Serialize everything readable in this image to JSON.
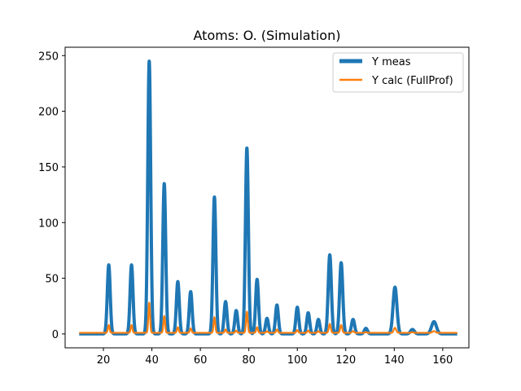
{
  "chart_data": {
    "type": "line",
    "title": "Atoms: O. (Simulation)",
    "xlabel": "",
    "ylabel": "",
    "xlim": [
      4.2,
      170.8
    ],
    "ylim": [
      -12.5,
      257.5
    ],
    "x_range": [
      10,
      166
    ],
    "xticks": [
      20,
      40,
      60,
      80,
      100,
      120,
      140,
      160
    ],
    "yticks": [
      0,
      50,
      100,
      150,
      200,
      250
    ],
    "grid": false,
    "legend": "top-right",
    "colors": {
      "meas": "#1f77b4",
      "calc": "#ff7f0e"
    },
    "series": [
      {
        "name": "Y meas",
        "baseline": 0,
        "peaks": [
          {
            "x": 22.2,
            "y": 62,
            "w": 0.6
          },
          {
            "x": 31.6,
            "y": 62,
            "w": 0.6
          },
          {
            "x": 38.9,
            "y": 245,
            "w": 0.6
          },
          {
            "x": 45.1,
            "y": 135,
            "w": 0.6
          },
          {
            "x": 50.7,
            "y": 47,
            "w": 0.6
          },
          {
            "x": 56.0,
            "y": 38,
            "w": 0.6
          },
          {
            "x": 65.8,
            "y": 123,
            "w": 0.6
          },
          {
            "x": 70.4,
            "y": 29,
            "w": 0.6
          },
          {
            "x": 74.8,
            "y": 21,
            "w": 0.6
          },
          {
            "x": 79.2,
            "y": 167,
            "w": 0.6
          },
          {
            "x": 83.4,
            "y": 49,
            "w": 0.6
          },
          {
            "x": 87.5,
            "y": 14,
            "w": 0.6
          },
          {
            "x": 91.6,
            "y": 26,
            "w": 0.6
          },
          {
            "x": 100.0,
            "y": 24,
            "w": 0.6
          },
          {
            "x": 104.5,
            "y": 19,
            "w": 0.6
          },
          {
            "x": 108.7,
            "y": 13,
            "w": 0.6
          },
          {
            "x": 113.4,
            "y": 71,
            "w": 0.65
          },
          {
            "x": 118.1,
            "y": 64,
            "w": 0.65
          },
          {
            "x": 123.0,
            "y": 13,
            "w": 0.65
          },
          {
            "x": 128.3,
            "y": 5,
            "w": 0.65
          },
          {
            "x": 140.3,
            "y": 42,
            "w": 0.8
          },
          {
            "x": 147.5,
            "y": 4,
            "w": 0.8
          },
          {
            "x": 156.4,
            "y": 11,
            "w": 1.0
          }
        ]
      },
      {
        "name": "Y calc (FullProf)",
        "baseline": 1,
        "peaks": [
          {
            "x": 22.2,
            "y": 7,
            "w": 0.35
          },
          {
            "x": 31.6,
            "y": 7,
            "w": 0.35
          },
          {
            "x": 38.9,
            "y": 27,
            "w": 0.35
          },
          {
            "x": 45.1,
            "y": 15,
            "w": 0.35
          },
          {
            "x": 50.7,
            "y": 5,
            "w": 0.35
          },
          {
            "x": 56.0,
            "y": 4,
            "w": 0.35
          },
          {
            "x": 65.8,
            "y": 14,
            "w": 0.35
          },
          {
            "x": 70.4,
            "y": 3,
            "w": 0.35
          },
          {
            "x": 74.8,
            "y": 2,
            "w": 0.35
          },
          {
            "x": 79.2,
            "y": 19,
            "w": 0.35
          },
          {
            "x": 83.4,
            "y": 5,
            "w": 0.35
          },
          {
            "x": 87.5,
            "y": 1.5,
            "w": 0.35
          },
          {
            "x": 91.6,
            "y": 3,
            "w": 0.35
          },
          {
            "x": 100.0,
            "y": 2.5,
            "w": 0.35
          },
          {
            "x": 104.5,
            "y": 2,
            "w": 0.35
          },
          {
            "x": 108.7,
            "y": 1.5,
            "w": 0.35
          },
          {
            "x": 113.4,
            "y": 8,
            "w": 0.4
          },
          {
            "x": 118.1,
            "y": 7,
            "w": 0.4
          },
          {
            "x": 123.0,
            "y": 1.5,
            "w": 0.4
          },
          {
            "x": 128.3,
            "y": 0.5,
            "w": 0.4
          },
          {
            "x": 140.3,
            "y": 4.5,
            "w": 0.5
          },
          {
            "x": 147.5,
            "y": 0.5,
            "w": 0.5
          },
          {
            "x": 156.4,
            "y": 1.5,
            "w": 0.6
          }
        ]
      }
    ]
  }
}
